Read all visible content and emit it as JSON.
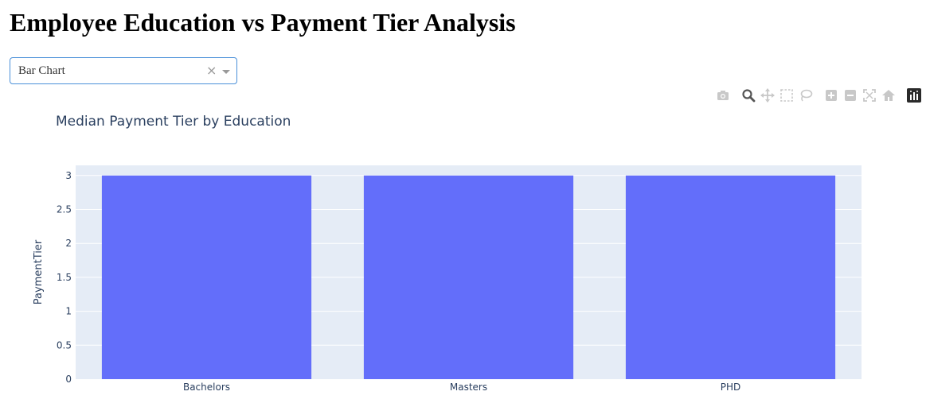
{
  "page": {
    "title": "Employee Education vs Payment Tier Analysis"
  },
  "dropdown": {
    "selected": "Bar Chart",
    "clear_glyph": "×"
  },
  "modebar": {
    "icons": [
      "camera-icon",
      "zoom-icon",
      "pan-icon",
      "box-select-icon",
      "lasso-select-icon",
      "zoom-in-icon",
      "zoom-out-icon",
      "autoscale-icon",
      "reset-axes-icon",
      "plotly-logo-icon"
    ]
  },
  "colors": {
    "bar": "#636efa",
    "plot_bg": "#e5ecf6",
    "text": "#2a3f5f",
    "grid": "#ffffff"
  },
  "chart_data": {
    "type": "bar",
    "title": "Median Payment Tier by Education",
    "xlabel": "",
    "ylabel": "PaymentTier",
    "categories": [
      "Bachelors",
      "Masters",
      "PHD"
    ],
    "values": [
      3,
      3,
      3
    ],
    "ylim": [
      0,
      3.15
    ],
    "yticks": [
      0,
      0.5,
      1,
      1.5,
      2,
      2.5,
      3
    ],
    "ytick_labels": [
      "0",
      "0.5",
      "1",
      "1.5",
      "2",
      "2.5",
      "3"
    ],
    "grid": true,
    "legend": "none"
  }
}
